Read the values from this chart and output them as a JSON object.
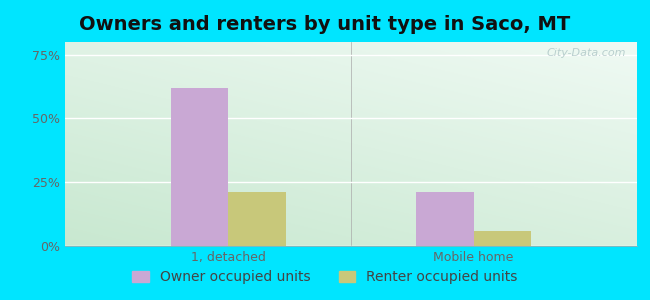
{
  "title": "Owners and renters by unit type in Saco, MT",
  "categories": [
    "1, detached",
    "Mobile home"
  ],
  "owner_values": [
    62,
    21
  ],
  "renter_values": [
    21,
    6
  ],
  "owner_color": "#c9a8d4",
  "renter_color": "#c8c87a",
  "owner_label": "Owner occupied units",
  "renter_label": "Renter occupied units",
  "yticks": [
    0,
    25,
    50,
    75
  ],
  "ytick_labels": [
    "0%",
    "25%",
    "50%",
    "75%"
  ],
  "ylim": [
    0,
    80
  ],
  "bar_width": 0.35,
  "grad_bottom_left": "#c8e8d0",
  "grad_top_right": "#f0faf4",
  "outer_color": "#00e5ff",
  "watermark": "City-Data.com",
  "title_fontsize": 14,
  "axis_fontsize": 9,
  "legend_fontsize": 10
}
